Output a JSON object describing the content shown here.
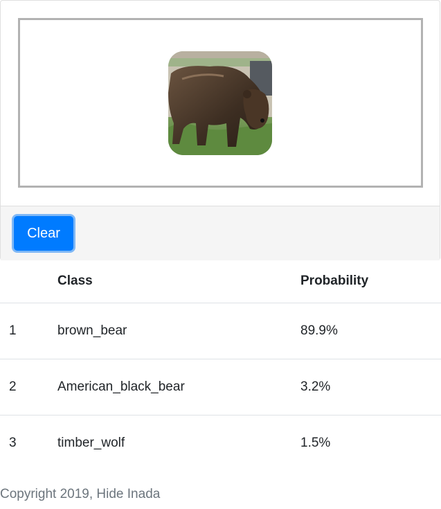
{
  "upload": {
    "image_alt": "brown bear photo"
  },
  "actions": {
    "clear_label": "Clear"
  },
  "results": {
    "headers": {
      "rank": "",
      "class": "Class",
      "probability": "Probability"
    },
    "rows": [
      {
        "rank": "1",
        "class": "brown_bear",
        "probability": "89.9%"
      },
      {
        "rank": "2",
        "class": "American_black_bear",
        "probability": "3.2%"
      },
      {
        "rank": "3",
        "class": "timber_wolf",
        "probability": "1.5%"
      }
    ]
  },
  "footer": {
    "copyright": "Copyright 2019, Hide Inada"
  },
  "colors": {
    "primary": "#007bff",
    "muted_text": "#6c757d",
    "footer_bg": "#f5f5f5"
  }
}
